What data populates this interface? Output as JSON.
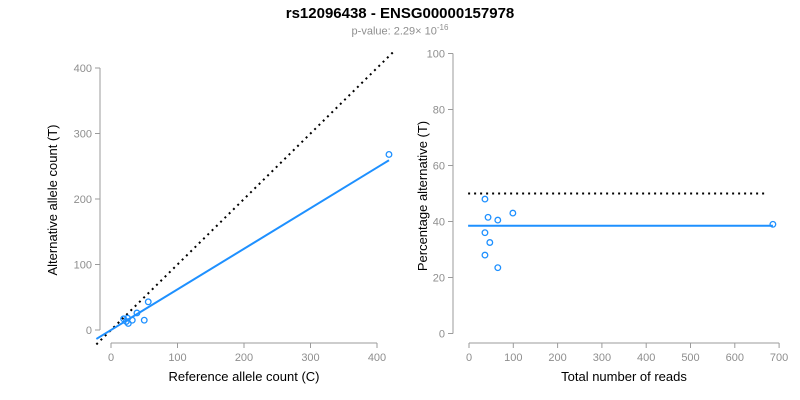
{
  "header": {
    "title": "rs12096438 - ENSG00000157978",
    "pvalue_prefix": "p-value: 2.29× 10",
    "pvalue_exponent": "-16"
  },
  "colors": {
    "point_blue": "#1E90FF",
    "line_blue": "#1E90FF",
    "dotted_black": "#000000",
    "axis_gray": "#9b9b9b",
    "tick_label_gray": "#8e8e8e",
    "axis_title_black": "#000000"
  },
  "chart_data": [
    {
      "type": "scatter",
      "panel": "left",
      "xlabel": "Reference allele count (C)",
      "ylabel": "Alternative allele count (T)",
      "xlim": [
        0,
        400
      ],
      "ylim": [
        0,
        400
      ],
      "xticks": [
        0,
        100,
        200,
        300,
        400
      ],
      "yticks": [
        0,
        100,
        200,
        300,
        400
      ],
      "grid": false,
      "points": [
        [
          19,
          17
        ],
        [
          25,
          18
        ],
        [
          23,
          13
        ],
        [
          26,
          10
        ],
        [
          32,
          15
        ],
        [
          39,
          26
        ],
        [
          50,
          15
        ],
        [
          56,
          43
        ],
        [
          418,
          268
        ]
      ],
      "lines": [
        {
          "name": "identity-line",
          "style": "dotted",
          "color": "black",
          "slope": 1,
          "intercept": 0,
          "x_range": [
            -22,
            425
          ]
        },
        {
          "name": "fit-line",
          "style": "solid",
          "color": "blue",
          "slope": 0.62,
          "intercept": 0,
          "x_range": [
            -22,
            418
          ]
        }
      ]
    },
    {
      "type": "scatter",
      "panel": "right",
      "xlabel": "Total number of reads",
      "ylabel": "Percentage alternative (T)",
      "xlim": [
        0,
        700
      ],
      "ylim": [
        0,
        100
      ],
      "xticks": [
        0,
        100,
        200,
        300,
        400,
        500,
        600,
        700
      ],
      "yticks": [
        0,
        20,
        40,
        60,
        80,
        100
      ],
      "grid": false,
      "points": [
        [
          36,
          48
        ],
        [
          43,
          41.5
        ],
        [
          65,
          40.5
        ],
        [
          99,
          43
        ],
        [
          36,
          36
        ],
        [
          47,
          32.5
        ],
        [
          36,
          28
        ],
        [
          65,
          23.5
        ],
        [
          686,
          39
        ]
      ],
      "lines": [
        {
          "name": "expected-line",
          "style": "dotted",
          "color": "black",
          "y": 50,
          "x_range": [
            -2,
            675
          ]
        },
        {
          "name": "mean-line",
          "style": "solid",
          "color": "blue",
          "y": 38.5,
          "x_range": [
            -2,
            686
          ]
        }
      ]
    }
  ]
}
